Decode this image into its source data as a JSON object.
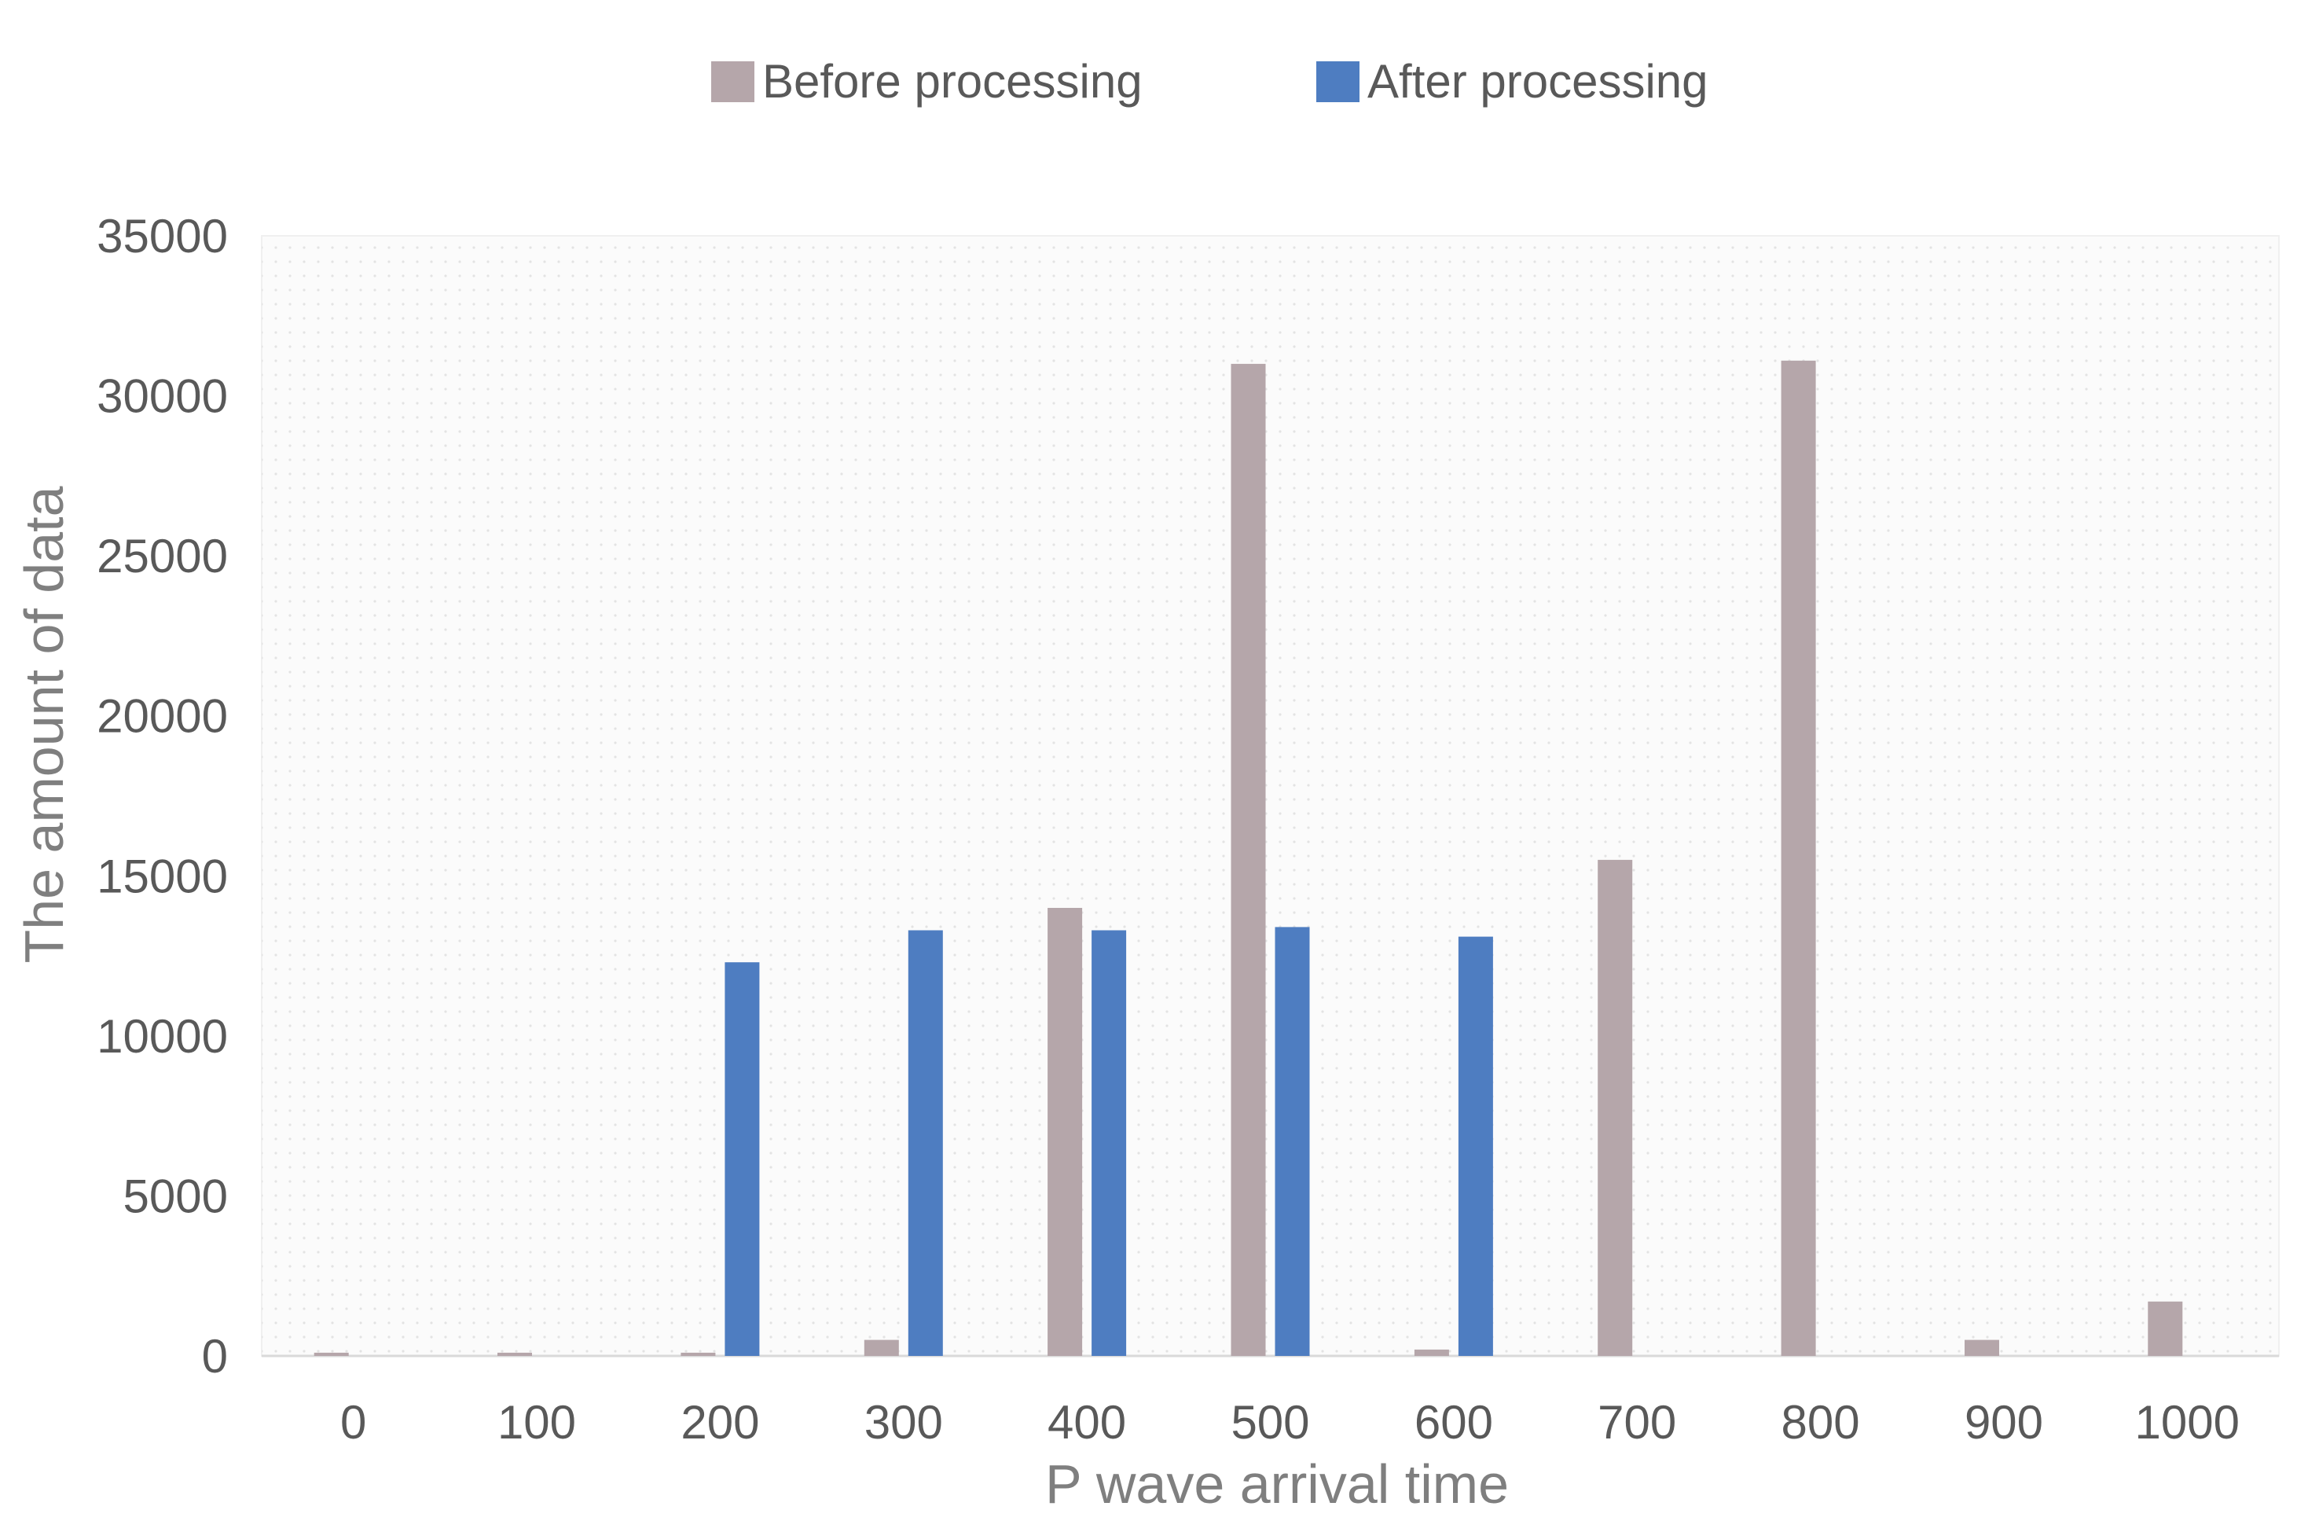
{
  "chart_data": {
    "type": "bar",
    "categories": [
      "0",
      "100",
      "200",
      "300",
      "400",
      "500",
      "600",
      "700",
      "800",
      "900",
      "1000"
    ],
    "series": [
      {
        "name": "Before processing",
        "color": "#b5a6aa",
        "values": [
          100,
          100,
          100,
          500,
          14000,
          31000,
          200,
          15500,
          31100,
          500,
          1700
        ]
      },
      {
        "name": "After processing",
        "color": "#4e7dc1",
        "values": [
          0,
          0,
          12300,
          13300,
          13300,
          13400,
          13100,
          0,
          0,
          0,
          0
        ]
      }
    ],
    "title": "",
    "xlabel": "P wave arrival time",
    "ylabel": "The amount of data",
    "ylim": [
      0,
      35000
    ],
    "yticks": [
      "0",
      "5000",
      "10000",
      "15000",
      "20000",
      "25000",
      "30000",
      "35000"
    ],
    "legend_position": "top",
    "grid": false
  }
}
